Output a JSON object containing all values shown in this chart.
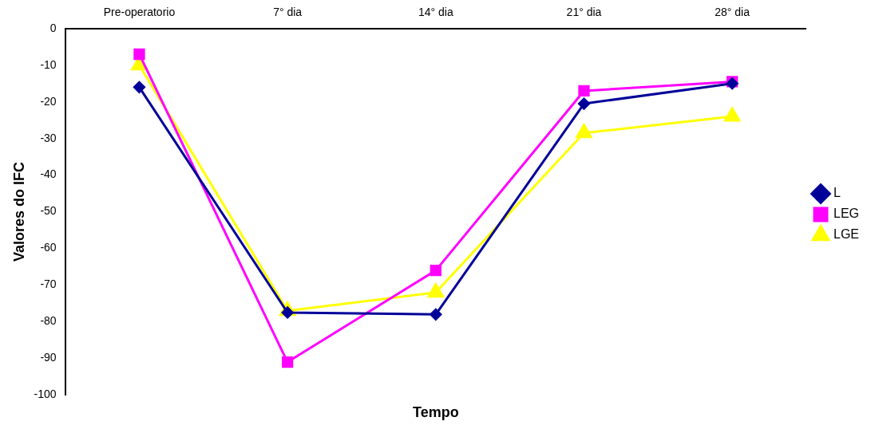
{
  "chart_data": {
    "type": "line",
    "xlabel": "Tempo",
    "ylabel": "Valores do IFC",
    "categories": [
      "Pre-operatorio",
      "7° dia",
      "14° dia",
      "21° dia",
      "28° dia"
    ],
    "series": [
      {
        "name": "L",
        "color": "#000099",
        "marker": "diamond",
        "values": [
          -16,
          -77.5,
          -78,
          -20.5,
          -15
        ]
      },
      {
        "name": "LEG",
        "color": "#ff00ff",
        "marker": "square",
        "values": [
          -7,
          -91,
          -66,
          -17,
          -14.5
        ]
      },
      {
        "name": "LGE",
        "color": "#ffff00",
        "marker": "triangle",
        "values": [
          -10,
          -77,
          -72,
          -28.5,
          -24
        ]
      }
    ],
    "ylim": [
      -100,
      0
    ],
    "yticks": [
      -100,
      -90,
      -80,
      -70,
      -60,
      -50,
      -40,
      -30,
      -20,
      -10,
      0
    ],
    "grid": false,
    "legend": "right"
  }
}
